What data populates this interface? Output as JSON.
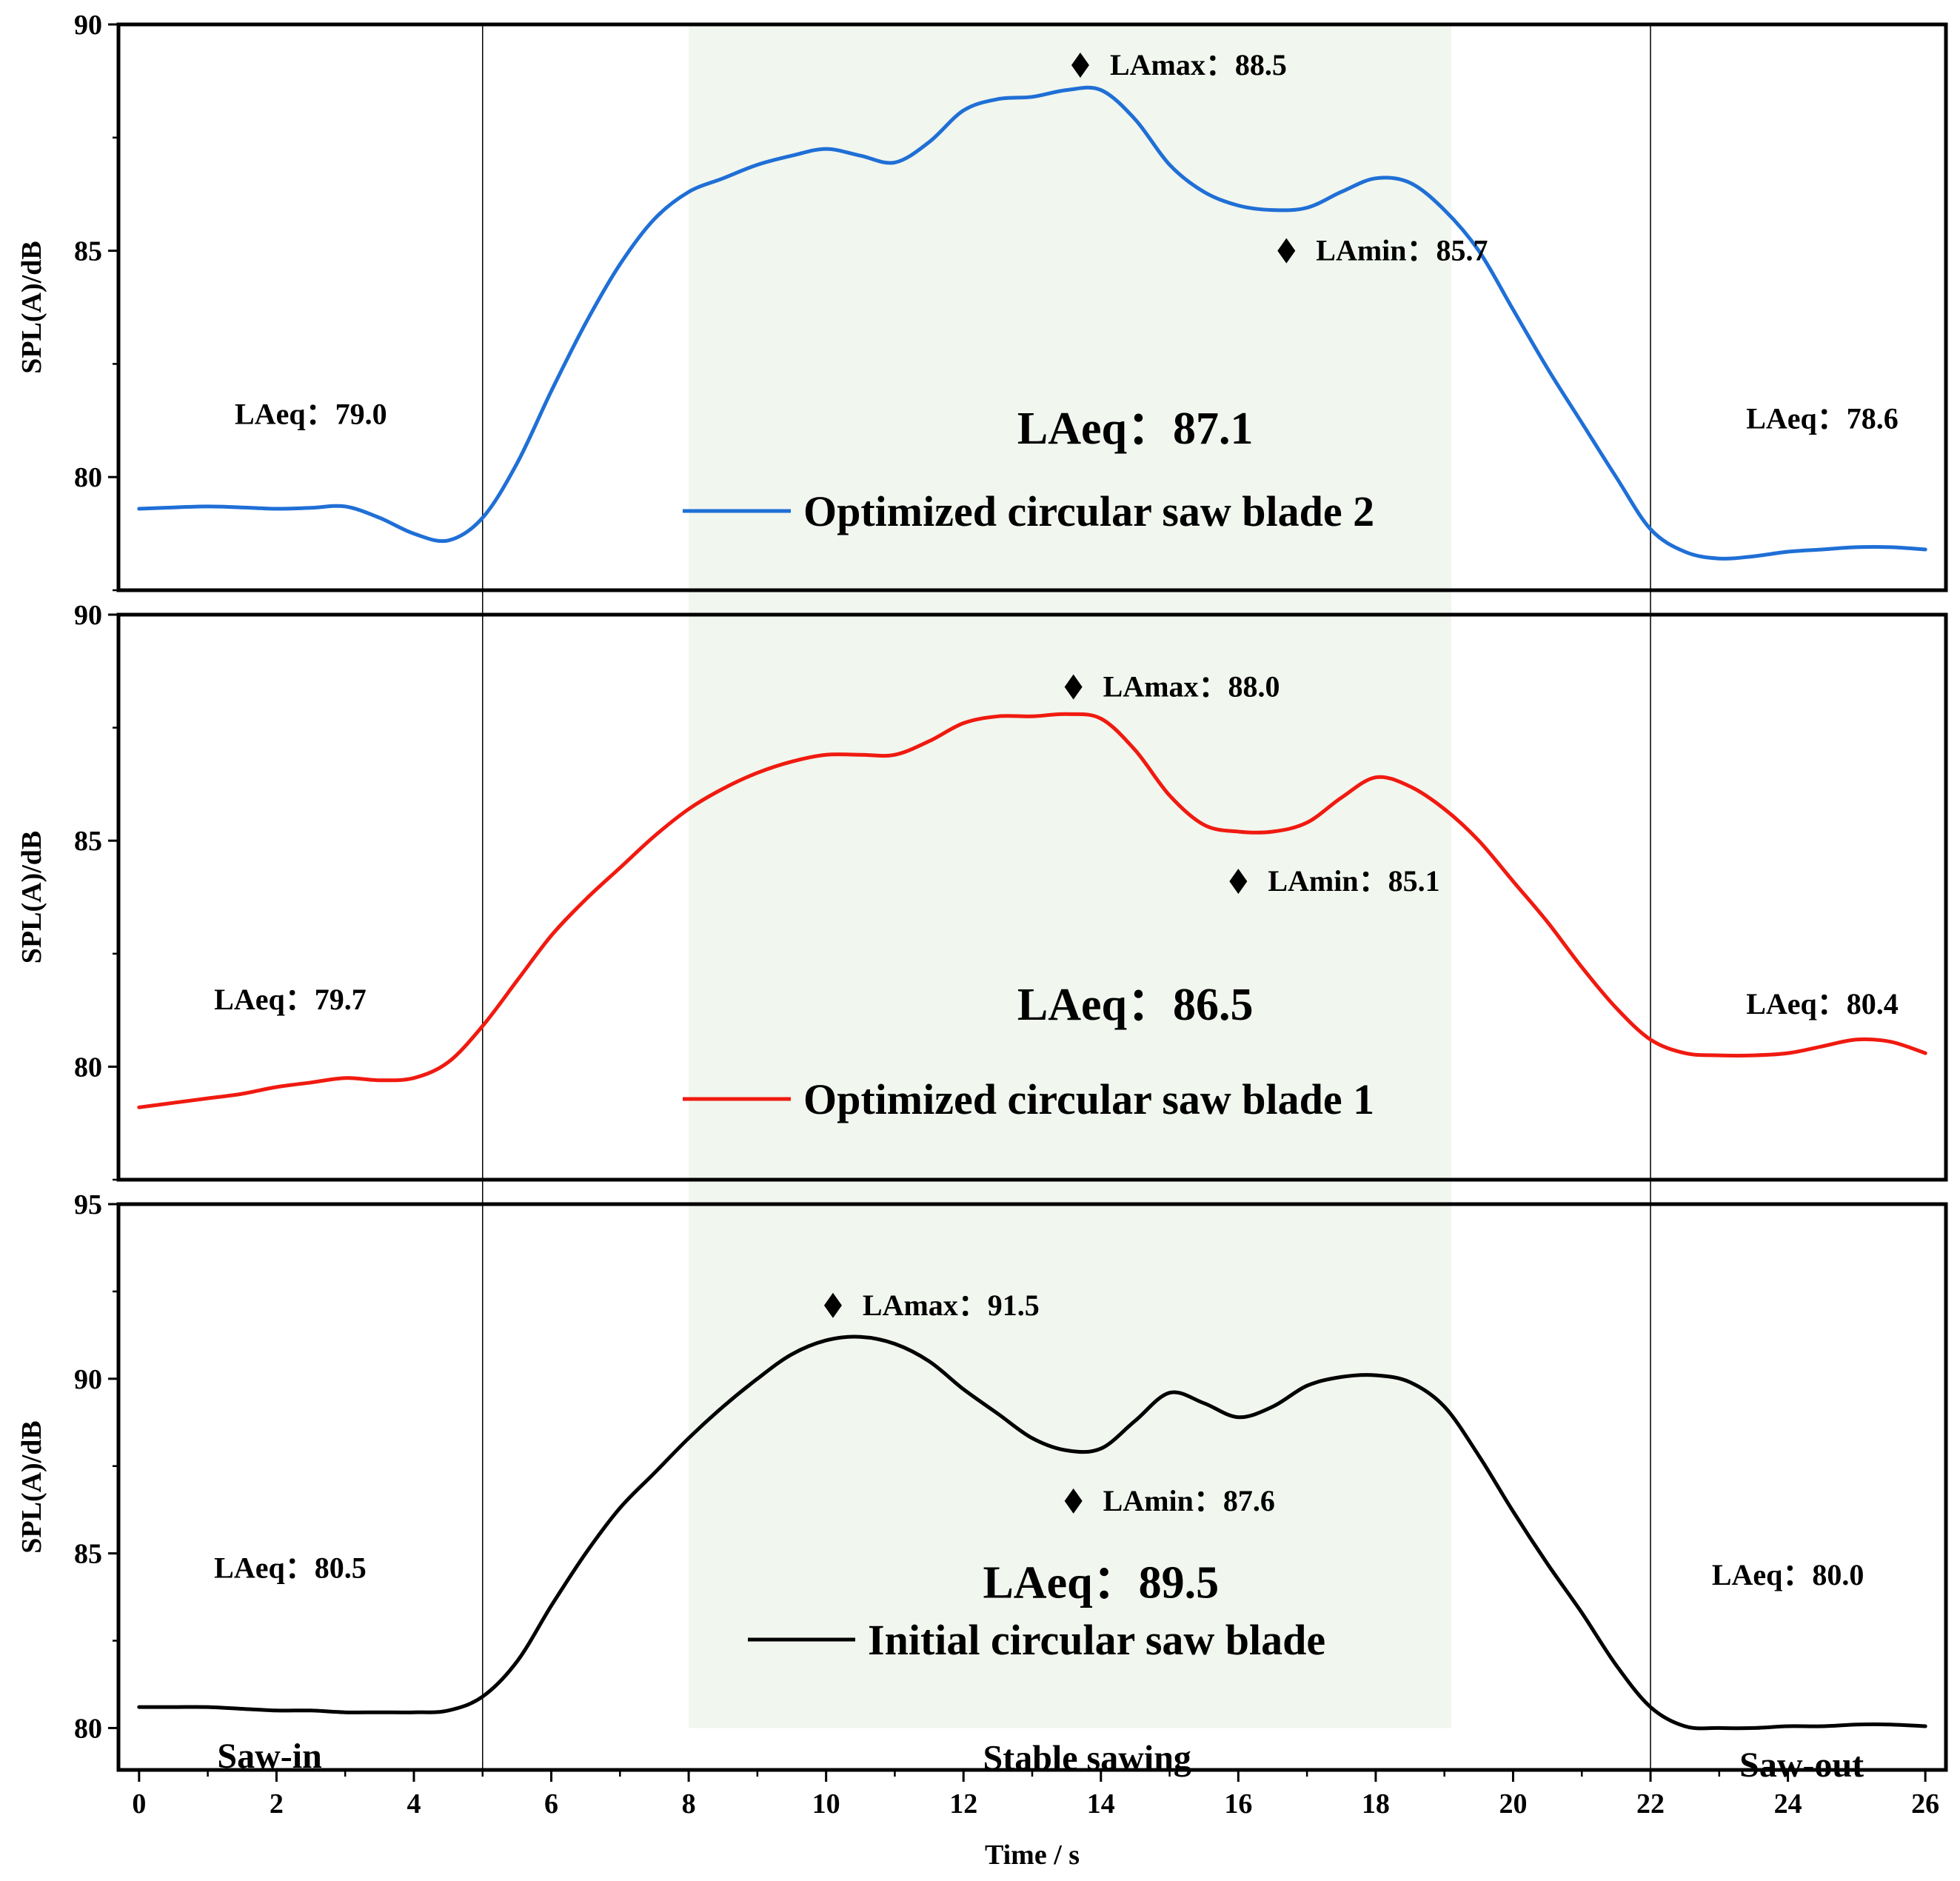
{
  "chart_data": {
    "type": "line",
    "xlabel": "Time / s",
    "ylabel": "SPL(A)/dB",
    "xlim": [
      -0.3,
      26.3
    ],
    "x_ticks": [
      0,
      2,
      4,
      6,
      8,
      10,
      12,
      14,
      16,
      18,
      20,
      22,
      24,
      26
    ],
    "stable_region": [
      8,
      19.1
    ],
    "phase_boundaries": [
      5,
      22
    ],
    "phase_labels": [
      {
        "text": "Saw-in",
        "x": 1.9,
        "y": 79.2
      },
      {
        "text": "Stable sawing",
        "x": 13.8,
        "y": 79.15
      },
      {
        "text": "Saw-out",
        "x": 24.2,
        "y": 78.95
      }
    ],
    "panels": [
      {
        "series_name": "Optimized circular saw blade 2",
        "color": "#1f6fd6",
        "ylim": [
          77.5,
          90
        ],
        "y_ticks": [
          80,
          85,
          90
        ],
        "y_minor_ticks": [
          77.5,
          82.5,
          87.5
        ],
        "x": [
          0,
          0.5,
          1,
          1.5,
          2,
          2.5,
          3,
          3.5,
          4,
          4.5,
          5,
          5.5,
          6,
          6.5,
          7,
          7.5,
          8,
          8.5,
          9,
          9.5,
          10,
          10.5,
          11,
          11.5,
          12,
          12.5,
          13,
          13.5,
          14,
          14.5,
          15,
          15.5,
          16,
          16.5,
          17,
          17.5,
          18,
          18.5,
          19,
          19.5,
          20,
          20.5,
          21,
          21.5,
          22,
          22.5,
          23,
          23.5,
          24,
          24.5,
          25,
          25.5,
          26
        ],
        "y": [
          79.3,
          79.33,
          79.35,
          79.33,
          79.3,
          79.32,
          79.35,
          79.1,
          78.75,
          78.6,
          79.1,
          80.3,
          81.9,
          83.4,
          84.7,
          85.7,
          86.3,
          86.6,
          86.9,
          87.1,
          87.25,
          87.1,
          86.95,
          87.4,
          88.1,
          88.35,
          88.4,
          88.55,
          88.55,
          87.9,
          86.9,
          86.3,
          86.0,
          85.9,
          85.95,
          86.3,
          86.6,
          86.5,
          85.9,
          85.0,
          83.7,
          82.4,
          81.2,
          80.0,
          78.85,
          78.35,
          78.2,
          78.25,
          78.35,
          78.4,
          78.45,
          78.45,
          78.4
        ],
        "lamax": {
          "label": "LAmax：88.5",
          "x": 13.7,
          "y": 89.1
        },
        "lamin": {
          "label": "LAmin：85.7",
          "x": 16.7,
          "y": 85.0
        },
        "laeq_left": {
          "label": "LAeq：79.0",
          "x": 2.5,
          "y": 81.4
        },
        "laeq_mid": {
          "label": "LAeq：87.1",
          "x": 14.5,
          "y": 81.1
        },
        "laeq_right": {
          "label": "LAeq：78.6",
          "x": 24.5,
          "y": 81.3
        }
      },
      {
        "series_name": "Optimized circular saw blade 1",
        "color": "#f01a10",
        "ylim": [
          77.5,
          90
        ],
        "y_ticks": [
          80,
          85,
          90
        ],
        "y_minor_ticks": [
          77.5,
          82.5,
          87.5
        ],
        "x": [
          0,
          0.5,
          1,
          1.5,
          2,
          2.5,
          3,
          3.5,
          4,
          4.5,
          5,
          5.5,
          6,
          6.5,
          7,
          7.5,
          8,
          8.5,
          9,
          9.5,
          10,
          10.5,
          11,
          11.5,
          12,
          12.5,
          13,
          13.5,
          14,
          14.5,
          15,
          15.5,
          16,
          16.5,
          17,
          17.5,
          18,
          18.5,
          19,
          19.5,
          20,
          20.5,
          21,
          21.5,
          22,
          22.5,
          23,
          23.5,
          24,
          24.5,
          25,
          25.5,
          26
        ],
        "y": [
          79.1,
          79.2,
          79.3,
          79.4,
          79.55,
          79.65,
          79.75,
          79.7,
          79.75,
          80.1,
          80.9,
          81.9,
          82.9,
          83.7,
          84.4,
          85.1,
          85.7,
          86.15,
          86.5,
          86.75,
          86.9,
          86.9,
          86.9,
          87.2,
          87.6,
          87.75,
          87.75,
          87.8,
          87.7,
          87.0,
          86.0,
          85.35,
          85.2,
          85.2,
          85.4,
          85.95,
          86.4,
          86.2,
          85.7,
          85.0,
          84.1,
          83.2,
          82.2,
          81.3,
          80.6,
          80.3,
          80.25,
          80.25,
          80.3,
          80.45,
          80.6,
          80.55,
          80.3
        ],
        "lamax": {
          "label": "LAmax：88.0",
          "x": 13.6,
          "y": 88.4
        },
        "lamin": {
          "label": "LAmin：85.1",
          "x": 16.0,
          "y": 84.1
        },
        "laeq_left": {
          "label": "LAeq：79.7",
          "x": 2.2,
          "y": 81.5
        },
        "laeq_mid": {
          "label": "LAeq：86.5",
          "x": 14.5,
          "y": 81.4
        },
        "laeq_right": {
          "label": "LAeq：80.4",
          "x": 24.5,
          "y": 81.4
        }
      },
      {
        "series_name": "Initial circular saw blade",
        "color": "#000000",
        "ylim": [
          78.8,
          95
        ],
        "y_ticks": [
          80,
          85,
          90,
          95
        ],
        "y_minor_ticks": [
          82.5,
          87.5,
          92.5
        ],
        "x": [
          0,
          0.5,
          1,
          1.5,
          2,
          2.5,
          3,
          3.5,
          4,
          4.5,
          5,
          5.5,
          6,
          6.5,
          7,
          7.5,
          8,
          8.5,
          9,
          9.5,
          10,
          10.5,
          11,
          11.5,
          12,
          12.5,
          13,
          13.5,
          14,
          14.5,
          15,
          15.5,
          16,
          16.5,
          17,
          17.5,
          18,
          18.5,
          19,
          19.5,
          20,
          20.5,
          21,
          21.5,
          22,
          22.5,
          23,
          23.5,
          24,
          24.5,
          25,
          25.5,
          26
        ],
        "y": [
          80.6,
          80.6,
          80.6,
          80.55,
          80.5,
          80.5,
          80.45,
          80.45,
          80.45,
          80.5,
          80.9,
          81.9,
          83.5,
          85.0,
          86.3,
          87.3,
          88.3,
          89.2,
          90.0,
          90.7,
          91.1,
          91.2,
          91.0,
          90.5,
          89.7,
          89.0,
          88.3,
          87.95,
          88.0,
          88.8,
          89.6,
          89.3,
          88.9,
          89.2,
          89.8,
          90.05,
          90.1,
          89.9,
          89.2,
          87.8,
          86.2,
          84.7,
          83.3,
          81.8,
          80.6,
          80.05,
          80.0,
          80.0,
          80.05,
          80.05,
          80.1,
          80.1,
          80.05
        ],
        "lamax": {
          "label": "LAmax：91.5",
          "x": 10.1,
          "y": 92.1
        },
        "lamin": {
          "label": "LAmin：87.6",
          "x": 13.6,
          "y": 86.5
        },
        "laeq_left": {
          "label": "LAeq：80.5",
          "x": 2.2,
          "y": 84.6
        },
        "laeq_mid": {
          "label": "LAeq：89.5",
          "x": 14.0,
          "y": 84.2
        },
        "laeq_right": {
          "label": "LAeq：80.0",
          "x": 24.0,
          "y": 84.4
        }
      }
    ]
  }
}
